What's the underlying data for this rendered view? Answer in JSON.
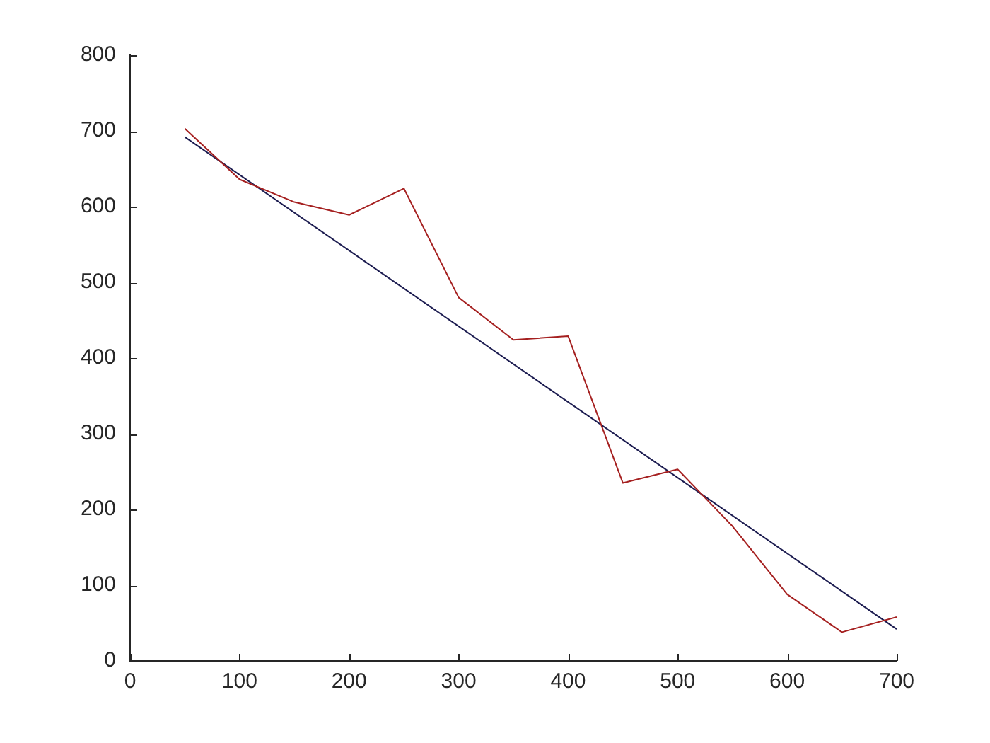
{
  "chart_data": {
    "type": "line",
    "x": [
      50,
      100,
      150,
      200,
      250,
      300,
      350,
      400,
      450,
      500,
      550,
      600,
      650,
      700
    ],
    "series": [
      {
        "color": "#a52020",
        "values": [
          703,
          636,
          606,
          589,
          624,
          480,
          424,
          429,
          235,
          253,
          178,
          88,
          38,
          58
        ]
      },
      {
        "type": "line",
        "color": "#1c1c50",
        "x": [
          50,
          700
        ],
        "values": [
          692,
          42
        ]
      }
    ],
    "xlim": [
      0,
      700
    ],
    "xticks": [
      0,
      100,
      200,
      300,
      400,
      500,
      600,
      700
    ],
    "ylim": [
      0,
      800
    ],
    "yticks": [
      0,
      100,
      200,
      300,
      400,
      500,
      600,
      700,
      800
    ],
    "marker": "none",
    "line_style": "solid"
  }
}
